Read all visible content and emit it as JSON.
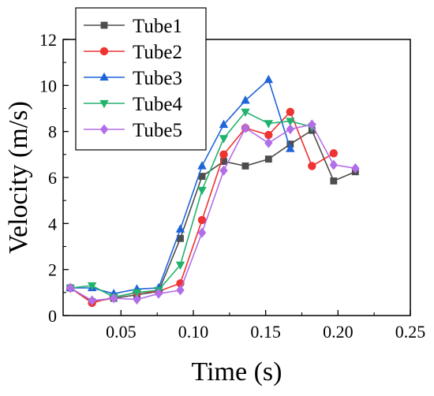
{
  "chart_data": {
    "type": "line",
    "title": "",
    "xlabel": "Time (s)",
    "ylabel": "Velocity (m/s)",
    "xlim": [
      0.01,
      0.25
    ],
    "ylim": [
      0,
      12
    ],
    "xticks": [
      0.05,
      0.1,
      0.15,
      0.2,
      0.25
    ],
    "xtick_labels": [
      "0.05",
      "0.10",
      "0.15",
      "0.20",
      "0.25"
    ],
    "yticks": [
      0,
      2,
      4,
      6,
      8,
      10,
      12
    ],
    "ytick_labels": [
      "0",
      "2",
      "4",
      "6",
      "8",
      "10",
      "12"
    ],
    "grid": false,
    "legend_position": "top-left",
    "series": [
      {
        "name": "Tube1",
        "color": "#4d4d4d",
        "marker": "square",
        "x": [
          0.015,
          0.03,
          0.045,
          0.061,
          0.076,
          0.091,
          0.106,
          0.121,
          0.136,
          0.152,
          0.167,
          0.182,
          0.197,
          0.212
        ],
        "y": [
          1.2,
          0.6,
          0.75,
          0.9,
          1.05,
          3.35,
          6.05,
          6.7,
          6.5,
          6.8,
          7.45,
          8.05,
          5.85,
          6.25
        ]
      },
      {
        "name": "Tube2",
        "color": "#ee3333",
        "marker": "circle",
        "x": [
          0.015,
          0.03,
          0.045,
          0.061,
          0.076,
          0.091,
          0.106,
          0.121,
          0.136,
          0.152,
          0.167,
          0.182,
          0.197
        ],
        "y": [
          1.2,
          0.55,
          0.8,
          1.0,
          1.05,
          1.4,
          4.15,
          7.0,
          8.15,
          7.85,
          8.85,
          6.5,
          7.05
        ]
      },
      {
        "name": "Tube3",
        "color": "#1f64d8",
        "marker": "triangle-up",
        "x": [
          0.015,
          0.03,
          0.045,
          0.061,
          0.076,
          0.091,
          0.106,
          0.121,
          0.136,
          0.152,
          0.167
        ],
        "y": [
          1.2,
          1.2,
          0.95,
          1.15,
          1.2,
          3.75,
          6.5,
          8.3,
          9.35,
          10.25,
          7.25
        ]
      },
      {
        "name": "Tube4",
        "color": "#21b26e",
        "marker": "triangle-down",
        "x": [
          0.015,
          0.03,
          0.045,
          0.061,
          0.076,
          0.091,
          0.106,
          0.121,
          0.136,
          0.152,
          0.167,
          0.182
        ],
        "y": [
          1.2,
          1.3,
          0.8,
          1.0,
          1.1,
          2.2,
          5.45,
          7.7,
          8.85,
          8.35,
          8.45,
          8.2
        ]
      },
      {
        "name": "Tube5",
        "color": "#b26ee8",
        "marker": "diamond",
        "x": [
          0.015,
          0.03,
          0.045,
          0.061,
          0.076,
          0.091,
          0.106,
          0.121,
          0.136,
          0.152,
          0.167,
          0.182,
          0.197,
          0.212
        ],
        "y": [
          1.2,
          0.65,
          0.75,
          0.7,
          0.95,
          1.1,
          3.6,
          6.3,
          8.15,
          7.5,
          8.1,
          8.3,
          6.55,
          6.4
        ]
      }
    ]
  }
}
